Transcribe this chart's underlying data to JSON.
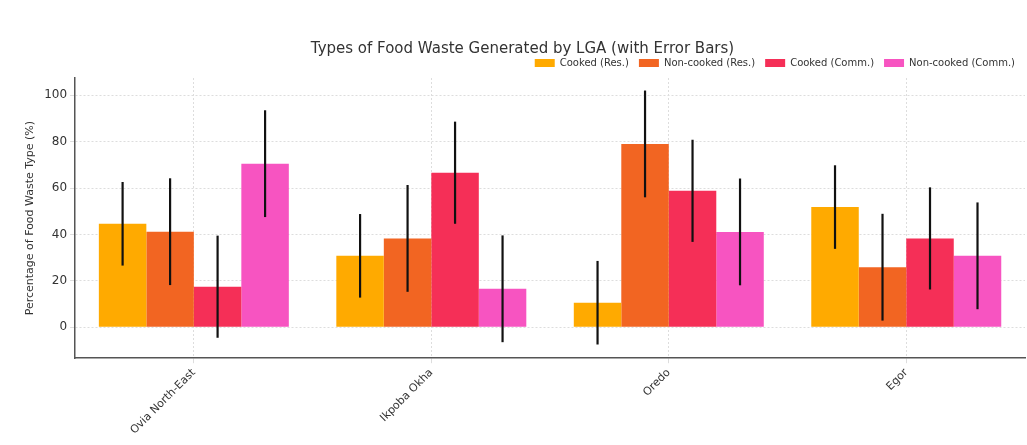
{
  "chart_data": {
    "type": "bar",
    "title": "Types of Food Waste Generated by LGA (with Error Bars)",
    "ylabel": "Percentage of Food Waste Type (%)",
    "categories": [
      "Ovia North-East",
      "Ikpoba Okha",
      "Oredo",
      "Egor"
    ],
    "series": [
      {
        "name": "Cooked (Res.)",
        "color": "#ffaa00",
        "values": [
          44.6,
          30.8,
          10.6,
          51.8
        ],
        "errors": [
          18,
          18,
          18,
          18
        ]
      },
      {
        "name": "Non-cooked (Res.)",
        "color": "#f26522",
        "values": [
          41.2,
          38.3,
          79,
          25.9
        ],
        "errors": [
          23,
          23,
          23,
          23
        ]
      },
      {
        "name": "Cooked (Comm.)",
        "color": "#f52f57",
        "values": [
          17.5,
          66.6,
          58.8,
          38.3
        ],
        "errors": [
          22,
          22,
          22,
          22
        ]
      },
      {
        "name": "Non-cooked (Comm.)",
        "color": "#f754c1",
        "values": [
          70.5,
          16.6,
          41.1,
          30.8
        ],
        "errors": [
          23,
          23,
          23,
          23
        ]
      }
    ],
    "ylim": [
      -13.3,
      107.4
    ],
    "yticks": [
      0,
      20,
      40,
      60,
      80,
      100
    ],
    "grid": true,
    "legend": "top right"
  }
}
